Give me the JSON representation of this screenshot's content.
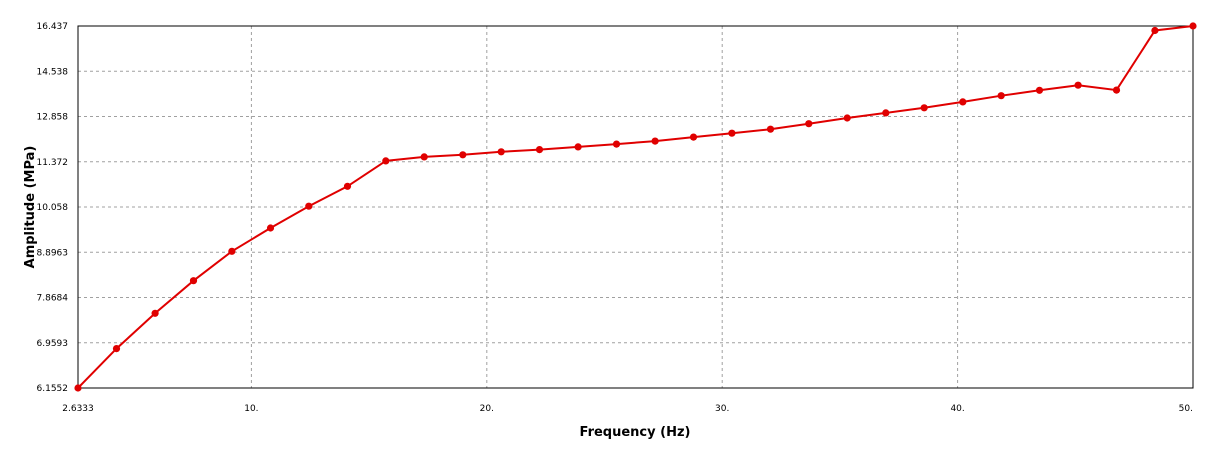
{
  "chart_data": {
    "type": "line",
    "xlabel": "Frequency (Hz)",
    "ylabel": "Amplitude (MPa)",
    "xlim": [
      2.6333,
      50
    ],
    "ylim": [
      6.1552,
      16.437
    ],
    "x_ticks": [
      2.6333,
      10,
      20,
      30,
      40,
      50
    ],
    "x_tick_labels": [
      "2.6333",
      "10.",
      "20.",
      "30.",
      "40.",
      "50."
    ],
    "y_ticks": [
      6.1552,
      6.9593,
      7.8684,
      8.8963,
      10.058,
      11.372,
      12.858,
      14.538,
      16.437
    ],
    "y_tick_labels": [
      "6.1552",
      "6.9593",
      "7.8684",
      "8.8963",
      "10.058",
      "11.372",
      "12.858",
      "14.538",
      "16.437"
    ],
    "grid": true,
    "line_color": "#e00000",
    "series": [
      {
        "x": [
          2.6333,
          4.27,
          5.91,
          7.54,
          9.17,
          10.81,
          12.44,
          14.08,
          15.71,
          17.34,
          18.98,
          20.61,
          22.24,
          23.88,
          25.51,
          27.15,
          28.78,
          30.41,
          32.05,
          33.68,
          35.31,
          36.95,
          38.58,
          40.22,
          41.85,
          43.48,
          45.12,
          46.75,
          48.38,
          50.0
        ],
        "y": [
          6.1552,
          6.855,
          7.55,
          8.25,
          8.92,
          9.52,
          10.08,
          10.66,
          11.4,
          11.53,
          11.6,
          11.7,
          11.77,
          11.86,
          11.95,
          12.05,
          12.18,
          12.31,
          12.44,
          12.62,
          12.81,
          12.99,
          13.18,
          13.4,
          13.63,
          13.83,
          14.02,
          13.84,
          16.25,
          16.437
        ]
      }
    ]
  }
}
